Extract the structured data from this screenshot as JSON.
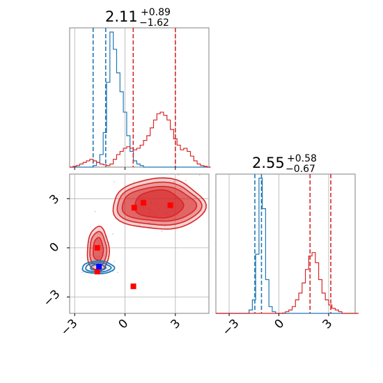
{
  "colors": {
    "blue": "#1f77b4",
    "red": "#d62728",
    "marker_blue": "#0000ff",
    "marker_red": "#ff0000",
    "grid": "#b0b0b0"
  },
  "chart_data": [
    {
      "type": "histogram",
      "panel": "marginal-1",
      "title": {
        "value": "2.11",
        "plus": "+0.89",
        "minus": "−1.62"
      },
      "xlim": [
        -3.3,
        5.0
      ],
      "bins": {
        "start": -3.3,
        "width": 0.2
      },
      "series": [
        {
          "color": "#1f77b4",
          "counts": [
            0,
            0,
            0,
            0,
            0,
            0,
            0,
            0.01,
            0.03,
            0.08,
            0.22,
            0.54,
            0.86,
            0.75,
            0.6,
            0.48,
            0.35,
            0.2,
            0.1,
            0.04,
            0.02,
            0.01,
            0,
            0,
            0,
            0,
            0,
            0,
            0,
            0,
            0,
            0,
            0,
            0,
            0,
            0,
            0,
            0,
            0,
            0,
            0,
            0
          ],
          "quantile_lines": [
            -1.9,
            -1.15
          ]
        },
        {
          "color": "#d62728",
          "counts": [
            0,
            0.005,
            0.01,
            0.02,
            0.03,
            0.04,
            0.05,
            0.04,
            0.03,
            0.02,
            0.015,
            0.01,
            0.02,
            0.05,
            0.08,
            0.1,
            0.12,
            0.13,
            0.12,
            0.11,
            0.12,
            0.14,
            0.17,
            0.2,
            0.25,
            0.3,
            0.34,
            0.35,
            0.33,
            0.3,
            0.24,
            0.18,
            0.14,
            0.11,
            0.12,
            0.1,
            0.07,
            0.04,
            0.02,
            0.01,
            0.005,
            0
          ],
          "quantile_lines": [
            0.49,
            3.0
          ]
        }
      ],
      "xticks": [
        -3,
        0,
        3
      ]
    },
    {
      "type": "scatter",
      "panel": "joint",
      "xlim": [
        -3.3,
        5.0
      ],
      "ylim": [
        -4.0,
        4.5
      ],
      "xticks": [
        "−3",
        "0",
        "3"
      ],
      "yticks": [
        "−3",
        "0",
        "3"
      ],
      "xtick_values": [
        -3,
        0,
        3
      ],
      "ytick_values": [
        -3,
        0,
        3
      ],
      "red_contours": {
        "big": {
          "center": [
            2.0,
            2.65
          ],
          "radii": [
            [
              2.75,
              1.55
            ],
            [
              2.5,
              1.3
            ],
            [
              2.2,
              1.05
            ],
            [
              1.45,
              0.85
            ]
          ]
        },
        "small": {
          "center": [
            -1.6,
            -0.1
          ],
          "radii": [
            [
              0.65,
              1.35
            ],
            [
              0.5,
              1.05
            ],
            [
              0.3,
              0.7
            ]
          ]
        }
      },
      "blue_contours": {
        "center": [
          -1.6,
          -1.2
        ],
        "radii": [
          [
            0.95,
            0.38
          ],
          [
            0.75,
            0.28
          ],
          [
            0.45,
            0.18
          ]
        ]
      },
      "markers": [
        {
          "x": 0.55,
          "y": 2.45,
          "color": "#ff0000"
        },
        {
          "x": 1.1,
          "y": 2.75,
          "color": "#ff0000"
        },
        {
          "x": 2.7,
          "y": 2.6,
          "color": "#ff0000"
        },
        {
          "x": -1.65,
          "y": 0.0,
          "color": "#ff0000"
        },
        {
          "x": -1.65,
          "y": -1.45,
          "color": "#ff0000"
        },
        {
          "x": 0.5,
          "y": -2.35,
          "color": "#ff0000"
        },
        {
          "x": -1.55,
          "y": -1.15,
          "color": "#0000ff"
        }
      ]
    },
    {
      "type": "histogram",
      "panel": "marginal-2",
      "title": {
        "value": "2.55",
        "plus": "+0.58",
        "minus": "−0.67"
      },
      "xlim": [
        -3.8,
        4.6
      ],
      "bins": {
        "start": -3.8,
        "width": 0.2
      },
      "series": [
        {
          "color": "#1f77b4",
          "counts": [
            0,
            0,
            0,
            0,
            0,
            0,
            0,
            0,
            0,
            0,
            0.02,
            0.08,
            0.35,
            0.8,
            0.62,
            0.2,
            0.04,
            0.01,
            0,
            0,
            0,
            0,
            0,
            0,
            0,
            0,
            0,
            0,
            0,
            0,
            0,
            0,
            0,
            0,
            0,
            0,
            0,
            0,
            0,
            0,
            0,
            0,
            0
          ],
          "quantile_lines": [
            -1.45,
            -1.05
          ]
        },
        {
          "color": "#d62728",
          "counts": [
            0,
            0,
            0,
            0,
            0,
            0,
            0,
            0,
            0,
            0,
            0,
            0,
            0,
            0,
            0,
            0,
            0,
            0,
            0,
            0,
            0.002,
            0.01,
            0.02,
            0.04,
            0.08,
            0.12,
            0.18,
            0.26,
            0.34,
            0.36,
            0.3,
            0.2,
            0.12,
            0.08,
            0.05,
            0.03,
            0.02,
            0.01,
            0,
            0,
            0,
            0,
            0
          ],
          "quantile_lines": [
            1.88,
            3.13
          ]
        }
      ],
      "xticks": [
        "−3",
        "0",
        "3"
      ],
      "xtick_values": [
        -3,
        0,
        3
      ]
    }
  ]
}
